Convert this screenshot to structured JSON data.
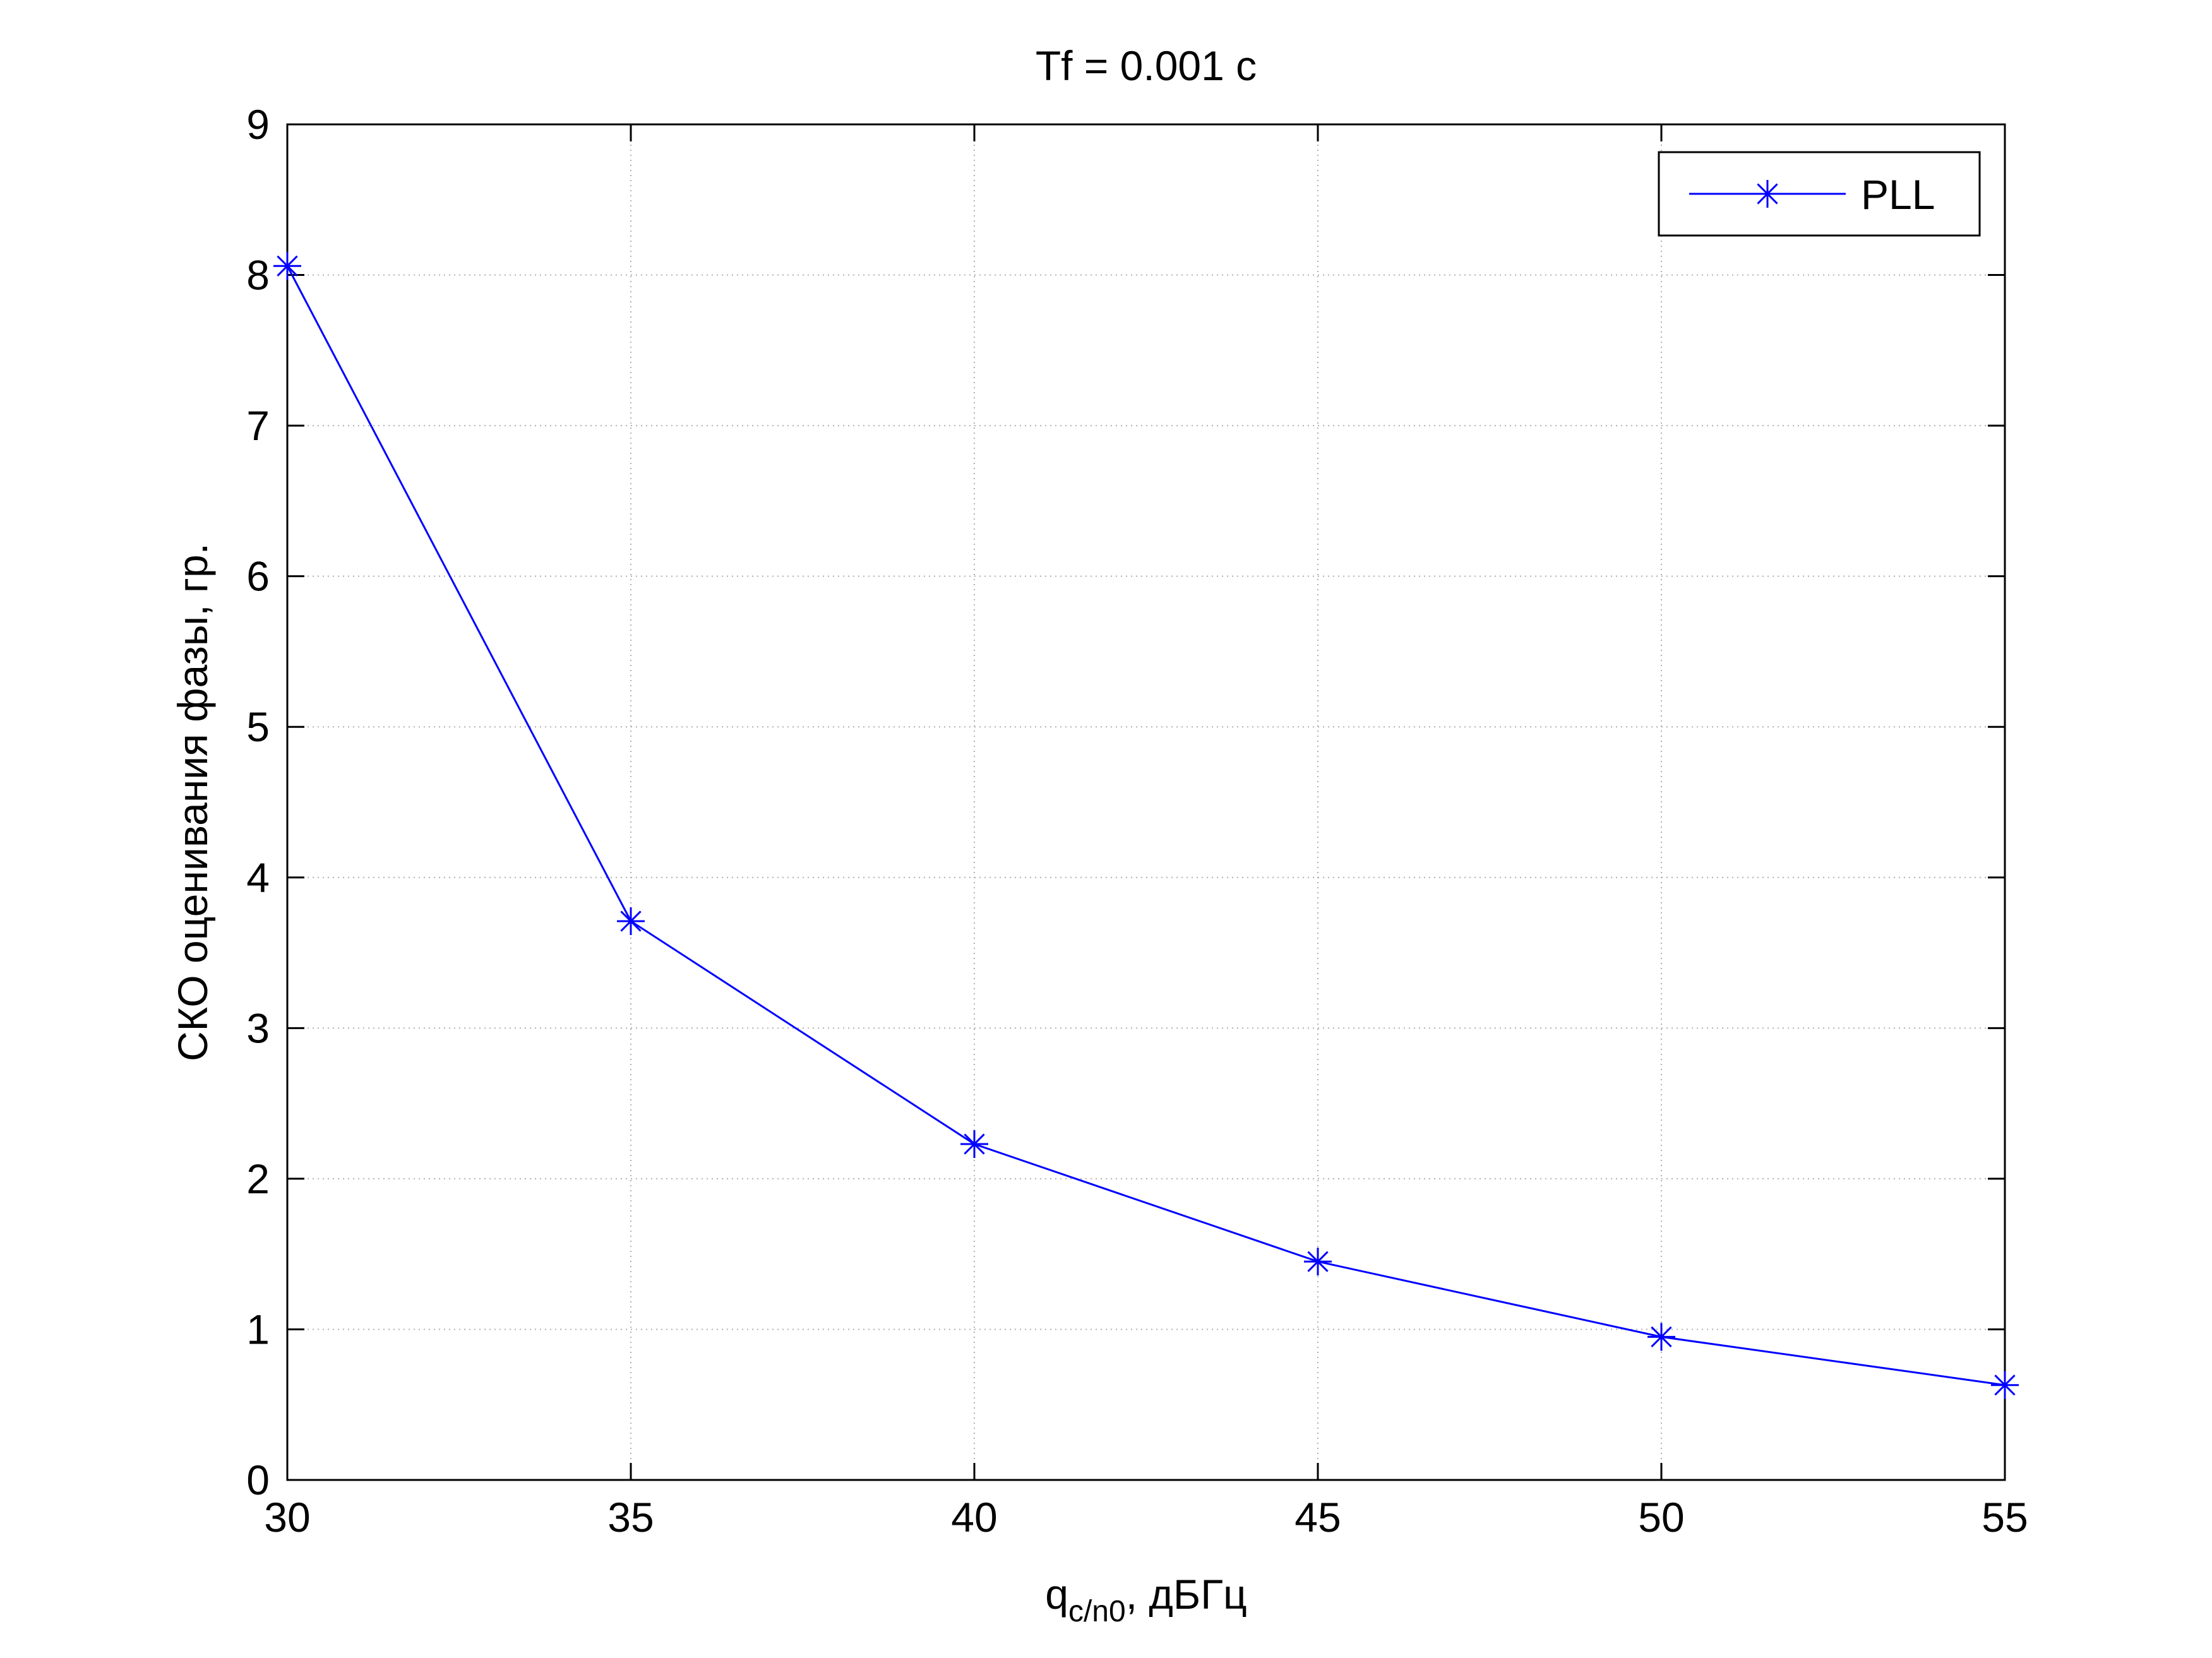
{
  "chart_data": {
    "type": "line",
    "title": "Tf = 0.001 с",
    "xlabel_main": "q",
    "xlabel_sub": "c/n0",
    "xlabel_suffix": ", дБГц",
    "ylabel": "СКО оценивания фазы, гр.",
    "xlim": [
      30,
      55
    ],
    "ylim": [
      0,
      9
    ],
    "xticks": [
      30,
      35,
      40,
      45,
      50,
      55
    ],
    "yticks": [
      0,
      1,
      2,
      3,
      4,
      5,
      6,
      7,
      8,
      9
    ],
    "grid": true,
    "legend_position": "top-right",
    "series": [
      {
        "name": "PLL",
        "color": "#0000ff",
        "marker": "asterisk",
        "x": [
          30,
          35,
          40,
          45,
          50,
          55
        ],
        "y": [
          8.06,
          3.71,
          2.23,
          1.45,
          0.95,
          0.63
        ]
      }
    ]
  }
}
